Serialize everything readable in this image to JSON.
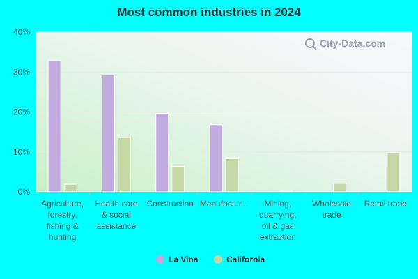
{
  "chart_data": {
    "type": "bar",
    "title": "Most common industries in 2024",
    "watermark": "City-Data.com",
    "categories": [
      [
        "Agriculture,",
        "forestry,",
        "fishing &",
        "hunting"
      ],
      [
        "Health care",
        "& social",
        "assistance"
      ],
      [
        "Construction"
      ],
      [
        "Manufactur..."
      ],
      [
        "Mining,",
        "quarrying,",
        "oil & gas",
        "extraction"
      ],
      [
        "Wholesale",
        "trade"
      ],
      [
        "Retail trade"
      ]
    ],
    "series": [
      {
        "name": "La Vina",
        "color": "#c1aadd",
        "values": [
          32.8,
          29.3,
          19.6,
          16.8,
          0,
          0,
          0
        ]
      },
      {
        "name": "California",
        "color": "#c5d8a6",
        "values": [
          1.9,
          13.6,
          6.4,
          8.3,
          0.2,
          2.1,
          9.8
        ]
      }
    ],
    "ylim": [
      0,
      40
    ],
    "yticks": [
      "0%",
      "10%",
      "20%",
      "30%",
      "40%"
    ],
    "grid": true,
    "legend_position": "bottom"
  }
}
